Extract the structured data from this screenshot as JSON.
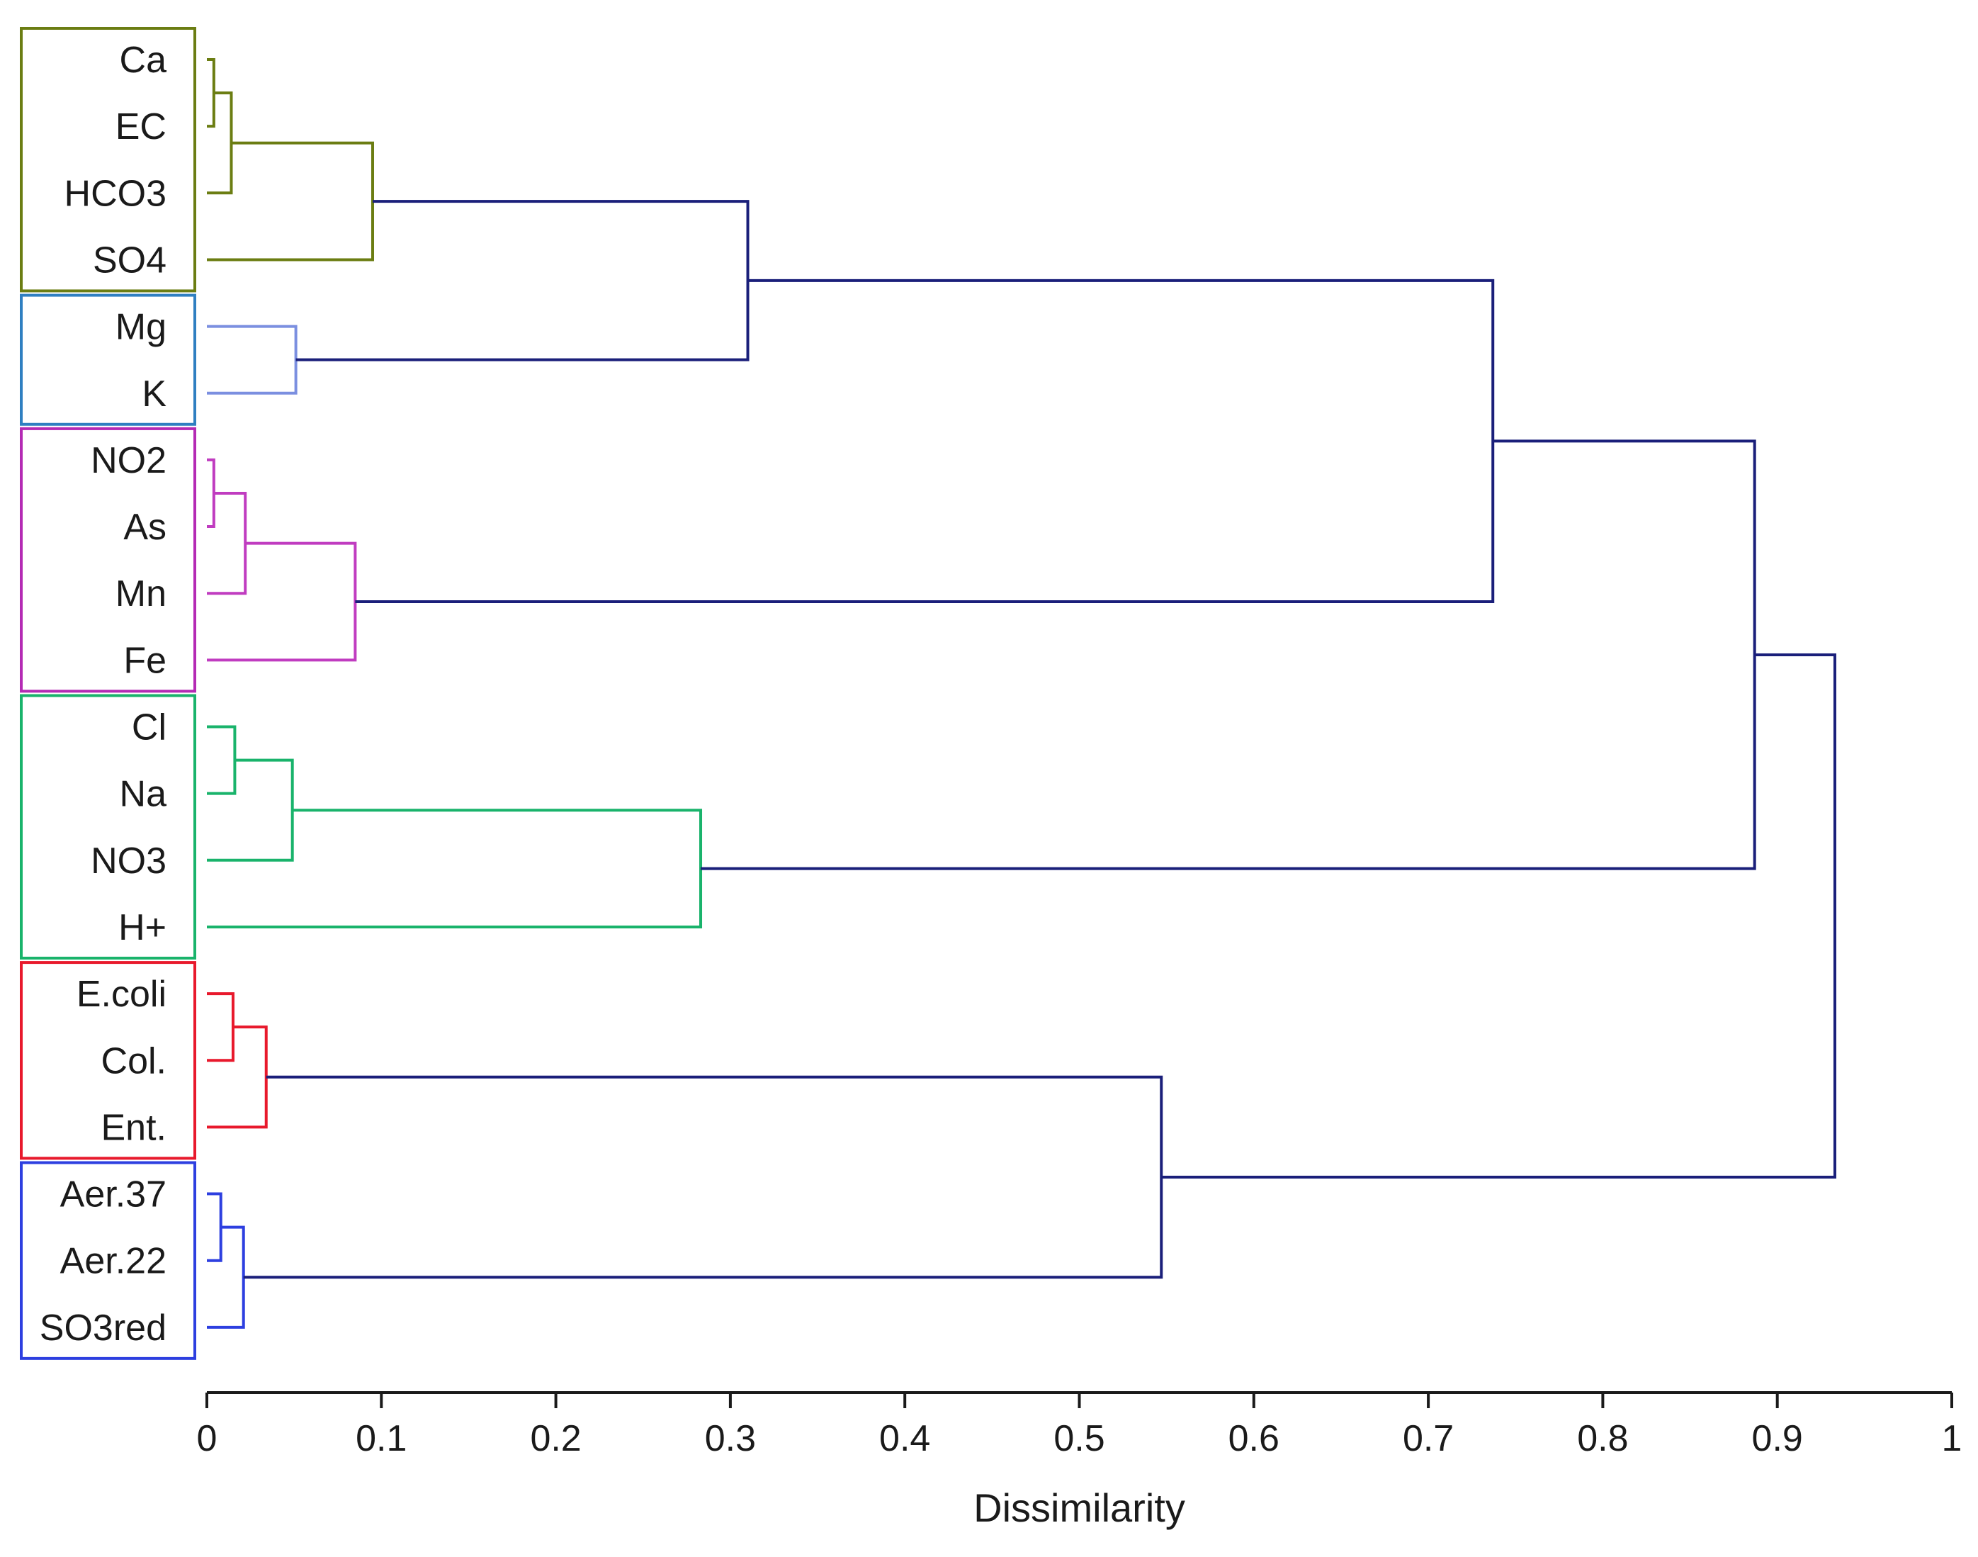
{
  "chart_data": {
    "type": "dendrogram",
    "orientation": "horizontal",
    "xlabel": "Dissimilarity",
    "xlim": [
      0,
      1
    ],
    "ticks": [
      "0",
      "0.1",
      "0.2",
      "0.3",
      "0.4",
      "0.5",
      "0.6",
      "0.7",
      "0.8",
      "0.9",
      "1"
    ],
    "tick_values": [
      0,
      0.1,
      0.2,
      0.3,
      0.4,
      0.5,
      0.6,
      0.7,
      0.8,
      0.9,
      1
    ],
    "leaves": [
      "Ca",
      "EC",
      "HCO3",
      "SO4",
      "Mg",
      "K",
      "NO2",
      "As",
      "Mn",
      "Fe",
      "Cl",
      "Na",
      "NO3",
      "H+",
      "E.coli",
      "Col.",
      "Ent.",
      "Aer.37",
      "Aer.22",
      "SO3red"
    ],
    "root_color": "#1a1f7a",
    "clusters": [
      {
        "name": "cluster-1",
        "color": "#6b7d12",
        "leaves": [
          "Ca",
          "EC",
          "HCO3",
          "SO4"
        ]
      },
      {
        "name": "cluster-2",
        "color": "#2f7fc1",
        "leaves": [
          "Mg",
          "K"
        ]
      },
      {
        "name": "cluster-3",
        "color": "#b42ab4",
        "leaves": [
          "NO2",
          "As",
          "Mn",
          "Fe"
        ]
      },
      {
        "name": "cluster-4",
        "color": "#19b36b",
        "leaves": [
          "Cl",
          "Na",
          "NO3",
          "H+"
        ]
      },
      {
        "name": "cluster-5",
        "color": "#e8192c",
        "leaves": [
          "E.coli",
          "Col.",
          "Ent."
        ]
      },
      {
        "name": "cluster-6",
        "color": "#2d3fe0",
        "leaves": [
          "Aer.37",
          "Aer.22",
          "SO3red"
        ]
      }
    ],
    "merges": [
      {
        "id": "m1",
        "left": "Ca",
        "right": "EC",
        "height": 0.004,
        "color": "#6b7d12"
      },
      {
        "id": "m2",
        "left": "m1",
        "right": "HCO3",
        "height": 0.014,
        "color": "#6b7d12"
      },
      {
        "id": "m3",
        "left": "m2",
        "right": "SO4",
        "height": 0.095,
        "color": "#6b7d12"
      },
      {
        "id": "m4",
        "left": "Mg",
        "right": "K",
        "height": 0.051,
        "color": "#7b8fe0"
      },
      {
        "id": "m5",
        "left": "m3",
        "right": "m4",
        "height": 0.31,
        "color": "#1a1f7a"
      },
      {
        "id": "m6",
        "left": "NO2",
        "right": "As",
        "height": 0.004,
        "color": "#c03cc0"
      },
      {
        "id": "m7",
        "left": "m6",
        "right": "Mn",
        "height": 0.022,
        "color": "#c03cc0"
      },
      {
        "id": "m8",
        "left": "m7",
        "right": "Fe",
        "height": 0.085,
        "color": "#c03cc0"
      },
      {
        "id": "m9",
        "left": "m5",
        "right": "m8",
        "height": 0.737,
        "color": "#1a1f7a"
      },
      {
        "id": "m10",
        "left": "Cl",
        "right": "Na",
        "height": 0.016,
        "color": "#19b36b"
      },
      {
        "id": "m11",
        "left": "m10",
        "right": "NO3",
        "height": 0.049,
        "color": "#19b36b"
      },
      {
        "id": "m12",
        "left": "m11",
        "right": "H+",
        "height": 0.283,
        "color": "#19b36b"
      },
      {
        "id": "m13",
        "left": "m9",
        "right": "m12",
        "height": 0.887,
        "color": "#1a1f7a"
      },
      {
        "id": "m14",
        "left": "E.coli",
        "right": "Col.",
        "height": 0.015,
        "color": "#e8192c"
      },
      {
        "id": "m15",
        "left": "m14",
        "right": "Ent.",
        "height": 0.034,
        "color": "#e8192c"
      },
      {
        "id": "m16",
        "left": "Aer.37",
        "right": "Aer.22",
        "height": 0.008,
        "color": "#2d3fe0"
      },
      {
        "id": "m17",
        "left": "m16",
        "right": "SO3red",
        "height": 0.021,
        "color": "#2d3fe0"
      },
      {
        "id": "m18",
        "left": "m15",
        "right": "m17",
        "height": 0.547,
        "color": "#1a1f7a"
      },
      {
        "id": "m19",
        "left": "m13",
        "right": "m18",
        "height": 0.933,
        "color": "#1a1f7a"
      }
    ]
  }
}
